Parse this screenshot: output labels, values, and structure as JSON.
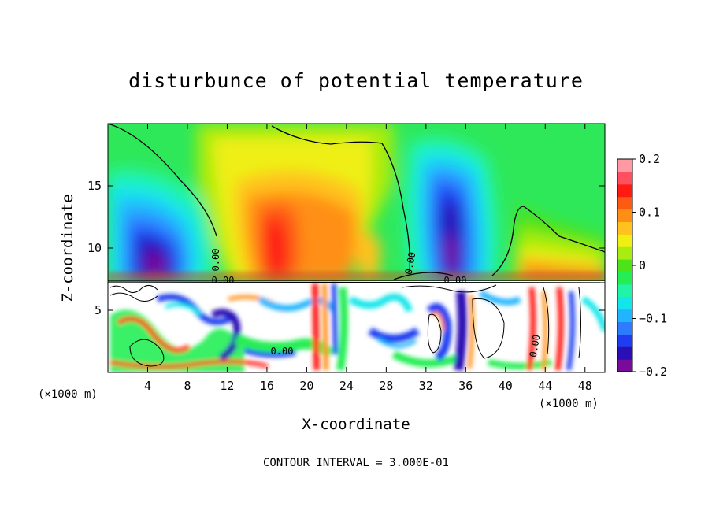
{
  "chart_data": {
    "type": "heatmap",
    "title": "disturbunce of potential temperature",
    "xlabel": "X-coordinate",
    "ylabel": "Z-coordinate",
    "x_unit_label": "(×1000 m)",
    "x_unit_label_right": "(×1000 m)",
    "footnote": "CONTOUR INTERVAL = 3.000E-01",
    "xlim": [
      0,
      50
    ],
    "ylim": [
      0,
      20
    ],
    "x_ticks": [
      4,
      8,
      12,
      16,
      20,
      24,
      28,
      32,
      36,
      40,
      44,
      48
    ],
    "y_ticks": [
      5,
      10,
      15
    ],
    "colorbar": {
      "range": [
        -0.2,
        0.2
      ],
      "tick_labels": [
        "0.2",
        "0.1",
        "0",
        "−0.1",
        "−0.2"
      ],
      "tick_values": [
        0.2,
        0.1,
        0,
        -0.1,
        -0.2
      ],
      "colors": [
        "#7a0b9a",
        "#2a0fb4",
        "#1f3cf0",
        "#2e7bff",
        "#22b5ff",
        "#12e6ea",
        "#21f4a6",
        "#25ee54",
        "#4ee21b",
        "#a8ec10",
        "#efef12",
        "#ffc21e",
        "#ff8f14",
        "#ff5a13",
        "#ff1a12",
        "#ff4f60",
        "#ff9aa5"
      ]
    },
    "contour_labels": [
      "0.00",
      "0.00",
      "0.00",
      "0.00",
      "0.00",
      "0.00"
    ],
    "features": [
      {
        "x": 4.5,
        "z": 8.5,
        "value": -0.2
      },
      {
        "x": 10,
        "z": 13,
        "value": 0.0
      },
      {
        "x": 18,
        "z": 11,
        "value": 0.16
      },
      {
        "x": 25,
        "z": 11,
        "value": 0.12
      },
      {
        "x": 34.5,
        "z": 9.5,
        "value": -0.2
      },
      {
        "x": 46,
        "z": 8,
        "value": 0.13
      },
      {
        "x": 5,
        "z": 17,
        "value": 0.0
      }
    ]
  }
}
